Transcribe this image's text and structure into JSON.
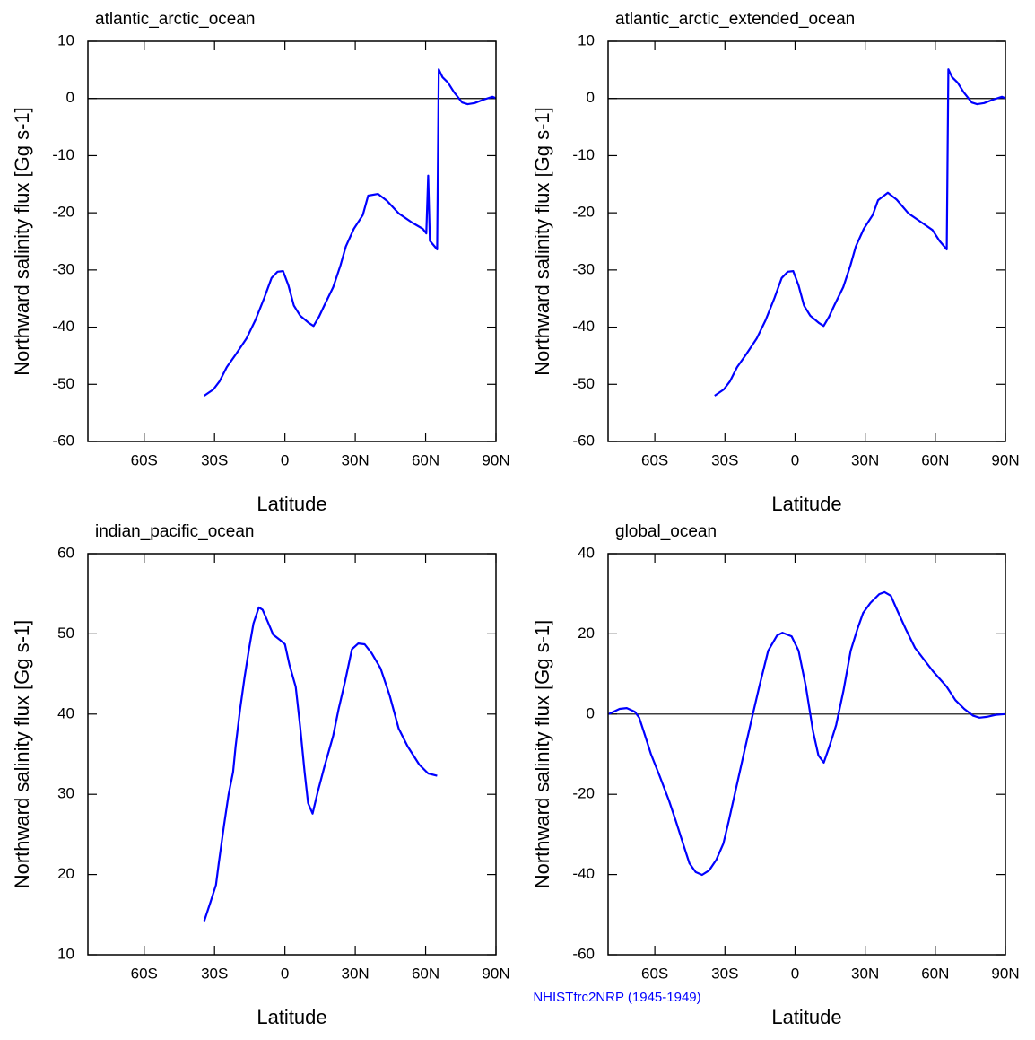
{
  "chart_data": [
    {
      "type": "line",
      "title": "atlantic_arctic_ocean",
      "x_label": "Latitude",
      "y_label": "Northward salinity flux [Gg s-1]",
      "color": "#0000ff",
      "zero_line": true,
      "xlim": [
        -84,
        90
      ],
      "xticks": [
        {
          "value": -60,
          "label": "60S"
        },
        {
          "value": -30,
          "label": "30S"
        },
        0,
        {
          "value": 30,
          "label": "30N"
        },
        {
          "value": 60,
          "label": "60N"
        },
        {
          "value": 90,
          "label": "90N"
        }
      ],
      "ylim": [
        -60,
        10
      ],
      "yticks": [
        -60,
        -50,
        -40,
        -30,
        -20,
        -10,
        0,
        10
      ],
      "x": [
        -34.4,
        -30.5,
        -27.9,
        -24.8,
        -21,
        -16.4,
        -12.6,
        -8.8,
        -5.7,
        -3.1,
        -0.8,
        1.5,
        3.8,
        6.5,
        10.3,
        12.2,
        14.5,
        16.8,
        20.6,
        23.7,
        26.0,
        29.4,
        33.2,
        35.5,
        39.7,
        43.5,
        48.5,
        54.2,
        58.8,
        60.3,
        61.1,
        61.8,
        64.9,
        65.6,
        67.2,
        69.5,
        72.1,
        75.6,
        77.9,
        80.9,
        84.7,
        88.5,
        89.7
      ],
      "values": [
        -52.0,
        -50.9,
        -49.5,
        -47.0,
        -44.8,
        -42.0,
        -38.8,
        -34.9,
        -31.4,
        -30.3,
        -30.2,
        -32.7,
        -36.2,
        -38.0,
        -39.3,
        -39.8,
        -38.2,
        -36.2,
        -33.0,
        -29.2,
        -25.9,
        -22.8,
        -20.4,
        -17.0,
        -16.7,
        -17.9,
        -20.1,
        -21.7,
        -22.8,
        -23.6,
        -13.5,
        -24.9,
        -26.4,
        5.1,
        3.7,
        2.8,
        1.1,
        -0.7,
        -1.0,
        -0.8,
        -0.2,
        0.3,
        0.1
      ]
    },
    {
      "type": "line",
      "title": "atlantic_arctic_extended_ocean",
      "x_label": "Latitude",
      "y_label": "Northward salinity flux [Gg s-1]",
      "color": "#0000ff",
      "zero_line": true,
      "xlim": [
        -80,
        90
      ],
      "xticks": [
        {
          "value": -60,
          "label": "60S"
        },
        {
          "value": -30,
          "label": "30S"
        },
        0,
        {
          "value": 30,
          "label": "30N"
        },
        {
          "value": 60,
          "label": "60N"
        },
        {
          "value": 90,
          "label": "90N"
        }
      ],
      "ylim": [
        -60,
        10
      ],
      "yticks": [
        -60,
        -50,
        -40,
        -30,
        -20,
        -10,
        0,
        10
      ],
      "x": [
        -34.4,
        -30.5,
        -27.9,
        -24.8,
        -21,
        -16.4,
        -12.6,
        -8.8,
        -5.7,
        -3.1,
        -0.8,
        1.5,
        3.8,
        6.5,
        10.3,
        12.2,
        14.5,
        16.8,
        20.6,
        23.7,
        26.0,
        29.4,
        33.2,
        35.5,
        39.7,
        43.5,
        48.5,
        54.2,
        58.8,
        61.8,
        64.9,
        65.6,
        67.2,
        69.5,
        72.1,
        75.6,
        77.9,
        80.9,
        84.7,
        88.5,
        89.7
      ],
      "values": [
        -52.0,
        -50.9,
        -49.5,
        -47.0,
        -44.8,
        -42.0,
        -38.8,
        -34.9,
        -31.4,
        -30.3,
        -30.2,
        -32.7,
        -36.2,
        -38.0,
        -39.3,
        -39.8,
        -38.2,
        -36.2,
        -33.0,
        -29.2,
        -25.9,
        -22.8,
        -20.4,
        -17.8,
        -16.5,
        -17.7,
        -20.1,
        -21.7,
        -23.0,
        -24.9,
        -26.4,
        5.1,
        3.7,
        2.8,
        1.1,
        -0.7,
        -1.0,
        -0.8,
        -0.2,
        0.3,
        0.1
      ]
    },
    {
      "type": "line",
      "title": "indian_pacific_ocean",
      "x_label": "Latitude",
      "y_label": "Northward salinity flux [Gg s-1]",
      "color": "#0000ff",
      "zero_line": false,
      "xlim": [
        -84,
        90
      ],
      "xticks": [
        {
          "value": -60,
          "label": "60S"
        },
        {
          "value": -30,
          "label": "30S"
        },
        0,
        {
          "value": 30,
          "label": "30N"
        },
        {
          "value": 60,
          "label": "60N"
        },
        {
          "value": 90,
          "label": "90N"
        }
      ],
      "ylim": [
        10,
        60
      ],
      "yticks": [
        10,
        20,
        30,
        40,
        50,
        60
      ],
      "x": [
        -34.4,
        -31.7,
        -29.4,
        -28.2,
        -26.0,
        -24.0,
        -22.1,
        -21.0,
        -19.1,
        -17.2,
        -15.3,
        -13.4,
        -11.1,
        -9.5,
        -7.3,
        -5.0,
        -2.3,
        0.0,
        1.9,
        4.6,
        6.5,
        8.4,
        9.9,
        11.8,
        14.1,
        16.8,
        20.6,
        22.9,
        25.6,
        28.6,
        31.3,
        34.0,
        37.0,
        40.8,
        44.7,
        48.5,
        52.3,
        57.3,
        61.1,
        64.9
      ],
      "values": [
        14.2,
        16.6,
        18.7,
        21.4,
        26.1,
        30.0,
        32.8,
        36.0,
        40.6,
        44.6,
        48.1,
        51.3,
        53.3,
        53.0,
        51.5,
        49.9,
        49.3,
        48.7,
        46.2,
        43.4,
        38.4,
        32.8,
        28.9,
        27.6,
        30.4,
        33.4,
        37.3,
        40.6,
        44.0,
        48.1,
        48.8,
        48.7,
        47.6,
        45.7,
        42.3,
        38.2,
        36.0,
        33.7,
        32.6,
        32.3
      ]
    },
    {
      "type": "line",
      "title": "global_ocean",
      "x_label": "Latitude",
      "y_label": "Northward salinity flux [Gg s-1]",
      "color": "#0000ff",
      "zero_line": true,
      "xlim": [
        -80,
        90
      ],
      "xticks": [
        {
          "value": -60,
          "label": "60S"
        },
        {
          "value": -30,
          "label": "30S"
        },
        0,
        {
          "value": 30,
          "label": "30N"
        },
        {
          "value": 60,
          "label": "60N"
        },
        {
          "value": 90,
          "label": "90N"
        }
      ],
      "ylim": [
        -60,
        40
      ],
      "yticks": [
        -60,
        -40,
        -20,
        0,
        20,
        40
      ],
      "x": [
        -79.7,
        -75.1,
        -72.0,
        -68.6,
        -66.7,
        -64.4,
        -61.7,
        -57.9,
        -54.0,
        -51.0,
        -48.3,
        -45.2,
        -42.5,
        -39.8,
        -36.8,
        -33.7,
        -30.7,
        -28.4,
        -24.5,
        -21.5,
        -18.4,
        -15.3,
        -11.5,
        -7.7,
        -5.4,
        -1.5,
        1.5,
        4.6,
        7.7,
        10.0,
        12.3,
        14.9,
        17.6,
        20.7,
        23.8,
        26.8,
        29.1,
        32.2,
        36.0,
        38.3,
        41.0,
        43.7,
        47.5,
        51.3,
        59.0,
        64.8,
        68.6,
        72.4,
        76.2,
        78.9,
        82.0,
        85.8,
        90.0
      ],
      "values": [
        0.0,
        1.3,
        1.5,
        0.6,
        -0.9,
        -5.0,
        -9.9,
        -15.5,
        -21.5,
        -26.7,
        -31.6,
        -37.2,
        -39.4,
        -40.1,
        -39.0,
        -36.3,
        -32.3,
        -26.7,
        -16.6,
        -8.8,
        -0.9,
        6.9,
        15.8,
        19.6,
        20.3,
        19.4,
        15.8,
        6.9,
        -4.3,
        -10.3,
        -12.1,
        -7.7,
        -2.7,
        5.8,
        15.8,
        21.4,
        25.2,
        27.7,
        29.9,
        30.4,
        29.5,
        25.9,
        21.0,
        16.5,
        10.7,
        6.9,
        3.5,
        1.3,
        -0.4,
        -0.9,
        -0.7,
        -0.2,
        0.0
      ]
    }
  ],
  "caption": "NHISTfrc2NRP (1945-1949)"
}
